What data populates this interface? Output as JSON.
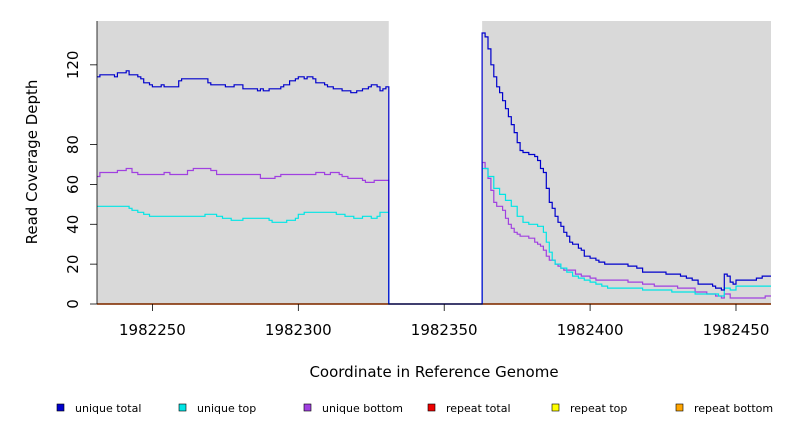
{
  "chart_data": {
    "type": "line",
    "xlabel": "Coordinate in Reference Genome",
    "ylabel": "Read Coverage Depth",
    "xlim": [
      1982231,
      1982462
    ],
    "ylim": [
      0,
      142
    ],
    "x_ticks": [
      1982250,
      1982300,
      1982350,
      1982400,
      1982450
    ],
    "y_ticks": [
      0,
      20,
      40,
      60,
      80,
      120
    ],
    "background": "#d9d9d9",
    "grid": false,
    "gap_region": [
      1982331,
      1982363
    ],
    "legend_position": "bottom",
    "series": [
      {
        "name": "unique total",
        "color": "#0000cc",
        "points": [
          [
            1982231,
            114
          ],
          [
            1982232,
            115
          ],
          [
            1982237,
            114
          ],
          [
            1982238,
            116
          ],
          [
            1982241,
            117
          ],
          [
            1982242,
            115
          ],
          [
            1982245,
            114
          ],
          [
            1982246,
            113
          ],
          [
            1982247,
            111
          ],
          [
            1982249,
            110
          ],
          [
            1982250,
            109
          ],
          [
            1982253,
            110
          ],
          [
            1982254,
            109
          ],
          [
            1982258,
            109
          ],
          [
            1982259,
            112
          ],
          [
            1982260,
            113
          ],
          [
            1982268,
            113
          ],
          [
            1982269,
            111
          ],
          [
            1982270,
            110
          ],
          [
            1982275,
            109
          ],
          [
            1982278,
            110
          ],
          [
            1982281,
            108
          ],
          [
            1982286,
            107
          ],
          [
            1982287,
            108
          ],
          [
            1982288,
            107
          ],
          [
            1982290,
            108
          ],
          [
            1982291,
            108
          ],
          [
            1982294,
            109
          ],
          [
            1982295,
            110
          ],
          [
            1982297,
            112
          ],
          [
            1982299,
            113
          ],
          [
            1982300,
            114
          ],
          [
            1982302,
            113
          ],
          [
            1982303,
            114
          ],
          [
            1982305,
            113
          ],
          [
            1982306,
            111
          ],
          [
            1982309,
            110
          ],
          [
            1982310,
            109
          ],
          [
            1982312,
            108
          ],
          [
            1982313,
            108
          ],
          [
            1982315,
            107
          ],
          [
            1982316,
            107
          ],
          [
            1982318,
            106
          ],
          [
            1982320,
            107
          ],
          [
            1982322,
            108
          ],
          [
            1982324,
            109
          ],
          [
            1982325,
            110
          ],
          [
            1982327,
            109
          ],
          [
            1982328,
            107
          ],
          [
            1982329,
            108
          ],
          [
            1982330,
            109
          ],
          [
            1982331,
            0
          ],
          [
            1982363,
            0
          ],
          [
            1982363,
            136
          ],
          [
            1982364,
            134
          ],
          [
            1982365,
            128
          ],
          [
            1982366,
            120
          ],
          [
            1982367,
            114
          ],
          [
            1982368,
            109
          ],
          [
            1982369,
            106
          ],
          [
            1982370,
            102
          ],
          [
            1982371,
            98
          ],
          [
            1982372,
            94
          ],
          [
            1982373,
            90
          ],
          [
            1982374,
            86
          ],
          [
            1982375,
            81
          ],
          [
            1982376,
            77
          ],
          [
            1982377,
            76
          ],
          [
            1982379,
            75
          ],
          [
            1982381,
            74
          ],
          [
            1982382,
            72
          ],
          [
            1982383,
            68
          ],
          [
            1982384,
            66
          ],
          [
            1982385,
            58
          ],
          [
            1982386,
            51
          ],
          [
            1982387,
            48
          ],
          [
            1982388,
            44
          ],
          [
            1982389,
            41
          ],
          [
            1982390,
            39
          ],
          [
            1982391,
            36
          ],
          [
            1982392,
            34
          ],
          [
            1982393,
            31
          ],
          [
            1982394,
            30
          ],
          [
            1982396,
            28
          ],
          [
            1982397,
            27
          ],
          [
            1982398,
            24
          ],
          [
            1982400,
            23
          ],
          [
            1982402,
            22
          ],
          [
            1982403,
            21
          ],
          [
            1982405,
            20
          ],
          [
            1982413,
            19
          ],
          [
            1982416,
            18
          ],
          [
            1982418,
            16
          ],
          [
            1982426,
            15
          ],
          [
            1982431,
            14
          ],
          [
            1982433,
            13
          ],
          [
            1982435,
            12
          ],
          [
            1982437,
            10
          ],
          [
            1982442,
            9
          ],
          [
            1982443,
            8
          ],
          [
            1982445,
            7
          ],
          [
            1982446,
            15
          ],
          [
            1982447,
            14
          ],
          [
            1982448,
            11
          ],
          [
            1982449,
            10
          ],
          [
            1982450,
            12
          ],
          [
            1982457,
            13
          ],
          [
            1982459,
            14
          ],
          [
            1982462,
            14
          ]
        ]
      },
      {
        "name": "unique top",
        "color": "#00e5e5",
        "points": [
          [
            1982231,
            49
          ],
          [
            1982240,
            49
          ],
          [
            1982242,
            48
          ],
          [
            1982243,
            47
          ],
          [
            1982245,
            46
          ],
          [
            1982247,
            45
          ],
          [
            1982249,
            44
          ],
          [
            1982266,
            44
          ],
          [
            1982268,
            45
          ],
          [
            1982272,
            44
          ],
          [
            1982274,
            43
          ],
          [
            1982277,
            42
          ],
          [
            1982281,
            43
          ],
          [
            1982290,
            42
          ],
          [
            1982291,
            41
          ],
          [
            1982296,
            42
          ],
          [
            1982299,
            43
          ],
          [
            1982300,
            45
          ],
          [
            1982302,
            46
          ],
          [
            1982313,
            45
          ],
          [
            1982316,
            44
          ],
          [
            1982319,
            43
          ],
          [
            1982322,
            44
          ],
          [
            1982325,
            43
          ],
          [
            1982327,
            44
          ],
          [
            1982328,
            46
          ],
          [
            1982331,
            0
          ],
          [
            1982363,
            0
          ],
          [
            1982363,
            68
          ],
          [
            1982365,
            64
          ],
          [
            1982367,
            58
          ],
          [
            1982369,
            55
          ],
          [
            1982371,
            52
          ],
          [
            1982373,
            49
          ],
          [
            1982375,
            44
          ],
          [
            1982377,
            41
          ],
          [
            1982379,
            40
          ],
          [
            1982382,
            39
          ],
          [
            1982384,
            36
          ],
          [
            1982385,
            31
          ],
          [
            1982386,
            26
          ],
          [
            1982387,
            22
          ],
          [
            1982388,
            20
          ],
          [
            1982390,
            18
          ],
          [
            1982392,
            16
          ],
          [
            1982394,
            14
          ],
          [
            1982396,
            13
          ],
          [
            1982398,
            12
          ],
          [
            1982400,
            11
          ],
          [
            1982402,
            10
          ],
          [
            1982404,
            9
          ],
          [
            1982406,
            8
          ],
          [
            1982418,
            7
          ],
          [
            1982428,
            6
          ],
          [
            1982436,
            5
          ],
          [
            1982444,
            4
          ],
          [
            1982446,
            8
          ],
          [
            1982448,
            7
          ],
          [
            1982450,
            9
          ],
          [
            1982458,
            9
          ],
          [
            1982462,
            9
          ]
        ]
      },
      {
        "name": "unique bottom",
        "color": "#a040e0",
        "points": [
          [
            1982231,
            64
          ],
          [
            1982232,
            66
          ],
          [
            1982237,
            66
          ],
          [
            1982238,
            67
          ],
          [
            1982241,
            68
          ],
          [
            1982243,
            66
          ],
          [
            1982245,
            65
          ],
          [
            1982251,
            65
          ],
          [
            1982254,
            66
          ],
          [
            1982256,
            65
          ],
          [
            1982261,
            65
          ],
          [
            1982262,
            67
          ],
          [
            1982264,
            68
          ],
          [
            1982270,
            67
          ],
          [
            1982272,
            65
          ],
          [
            1982286,
            65
          ],
          [
            1982287,
            63
          ],
          [
            1982292,
            64
          ],
          [
            1982294,
            65
          ],
          [
            1982304,
            65
          ],
          [
            1982306,
            66
          ],
          [
            1982309,
            65
          ],
          [
            1982311,
            66
          ],
          [
            1982314,
            65
          ],
          [
            1982315,
            64
          ],
          [
            1982317,
            63
          ],
          [
            1982322,
            62
          ],
          [
            1982323,
            61
          ],
          [
            1982326,
            62
          ],
          [
            1982328,
            62
          ],
          [
            1982331,
            0
          ],
          [
            1982363,
            0
          ],
          [
            1982363,
            71
          ],
          [
            1982364,
            68
          ],
          [
            1982365,
            63
          ],
          [
            1982366,
            57
          ],
          [
            1982367,
            51
          ],
          [
            1982368,
            49
          ],
          [
            1982370,
            47
          ],
          [
            1982371,
            43
          ],
          [
            1982372,
            40
          ],
          [
            1982373,
            38
          ],
          [
            1982374,
            36
          ],
          [
            1982375,
            35
          ],
          [
            1982376,
            34
          ],
          [
            1982379,
            33
          ],
          [
            1982381,
            31
          ],
          [
            1982382,
            30
          ],
          [
            1982383,
            29
          ],
          [
            1982384,
            27
          ],
          [
            1982385,
            24
          ],
          [
            1982386,
            22
          ],
          [
            1982388,
            20
          ],
          [
            1982389,
            19
          ],
          [
            1982390,
            18
          ],
          [
            1982391,
            17
          ],
          [
            1982395,
            15
          ],
          [
            1982397,
            14
          ],
          [
            1982400,
            13
          ],
          [
            1982402,
            12
          ],
          [
            1982413,
            11
          ],
          [
            1982418,
            10
          ],
          [
            1982422,
            9
          ],
          [
            1982430,
            8
          ],
          [
            1982436,
            6
          ],
          [
            1982440,
            5
          ],
          [
            1982443,
            4
          ],
          [
            1982445,
            3
          ],
          [
            1982446,
            5
          ],
          [
            1982448,
            3
          ],
          [
            1982460,
            4
          ],
          [
            1982462,
            4
          ]
        ]
      },
      {
        "name": "repeat total",
        "color": "#ee0000",
        "points": [
          [
            1982231,
            0
          ],
          [
            1982462,
            0
          ]
        ]
      },
      {
        "name": "repeat top",
        "color": "#ffff00",
        "points": [
          [
            1982231,
            0
          ],
          [
            1982462,
            0
          ]
        ]
      },
      {
        "name": "repeat bottom",
        "color": "#ffa500",
        "points": [
          [
            1982231,
            0
          ],
          [
            1982462,
            0
          ]
        ]
      }
    ]
  }
}
